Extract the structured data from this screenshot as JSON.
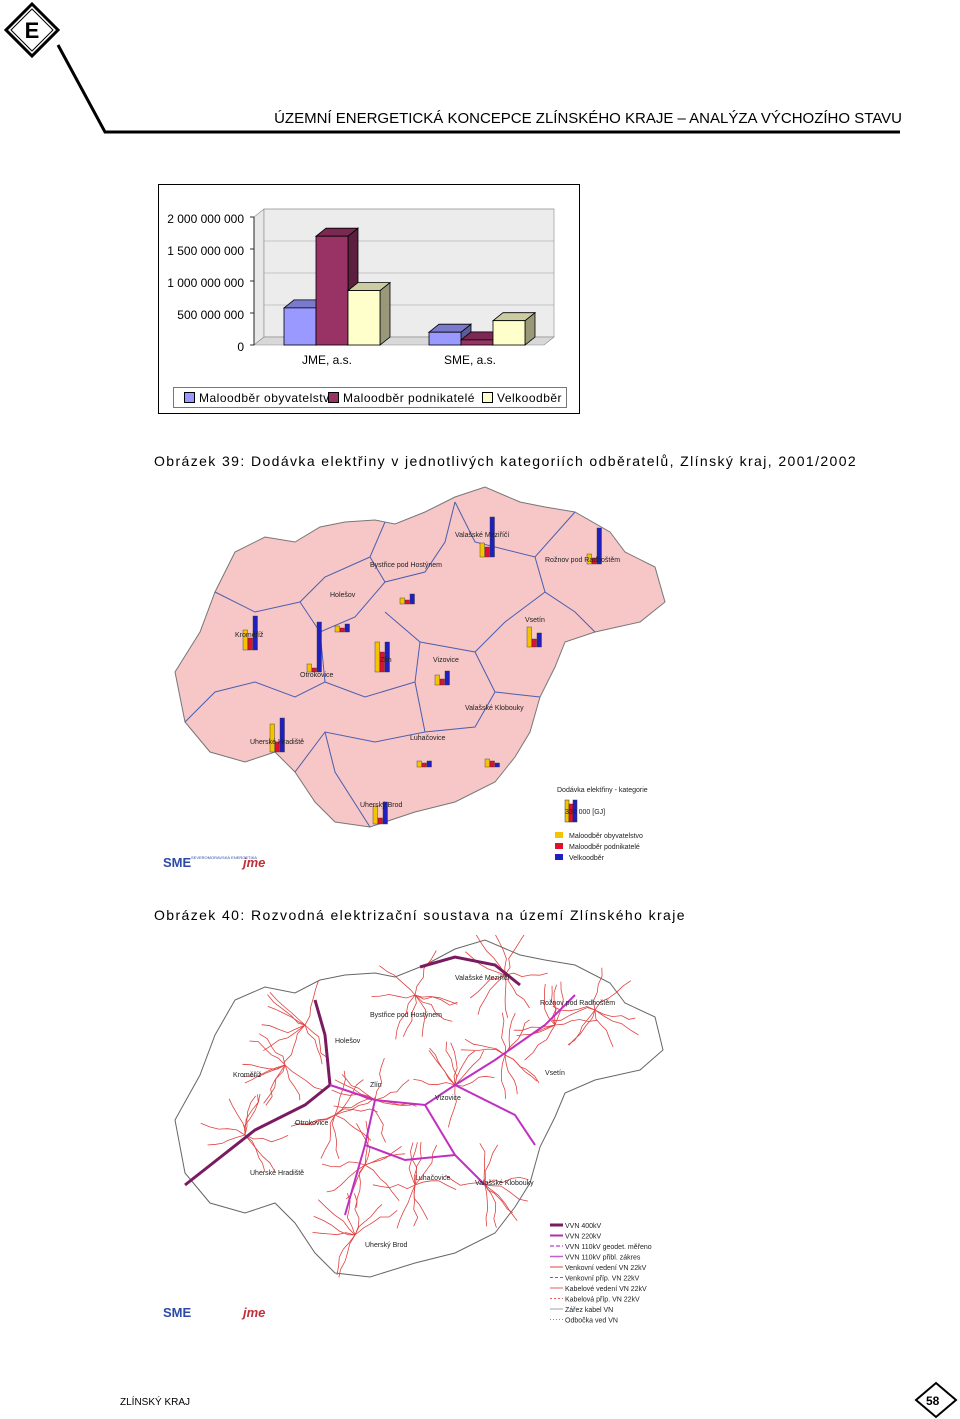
{
  "header": {
    "logo_letter": "E",
    "title": "ÚZEMNÍ ENERGETICKÁ KONCEPCE ZLÍNSKÉHO KRAJE – ANALÝZA VÝCHOZÍHO STAVU"
  },
  "chart_data": {
    "type": "bar",
    "categories": [
      "JME, a.s.",
      "SME, a.s."
    ],
    "series": [
      {
        "name": "Maloodběr obyvatelstvo",
        "values": [
          580000000,
          200000000
        ],
        "color": "#9999ff"
      },
      {
        "name": "Maloodběr podnikatelé",
        "values": [
          1700000000,
          80000000
        ],
        "color": "#993366"
      },
      {
        "name": "Velkoodběr",
        "values": [
          850000000,
          380000000
        ],
        "color": "#ffffcc"
      }
    ],
    "y_ticks": [
      "2 000 000 000",
      "1 500 000 000",
      "1 000 000 000",
      "500 000 000",
      "0"
    ],
    "ylim": [
      0,
      2000000000
    ],
    "legend_position": "bottom"
  },
  "captions": {
    "fig39": "Obrázek 39: Dodávka elektřiny v jednotlivých kategoriích odběratelů, Zlínský kraj, 2001/2002",
    "fig40": "Obrázek 40: Rozvodná elektrizační soustava na území Zlínského kraje"
  },
  "map1": {
    "towns": [
      "Valašské Meziříčí",
      "Rožnov pod Radhoštěm",
      "Bystřice pod Hostýnem",
      "Holešov",
      "Kroměříž",
      "Vsetín",
      "Zlín",
      "Vizovice",
      "Otrokovice",
      "Valašské Klobouky",
      "Uherské Hradiště",
      "Luhačovice",
      "Uherský Brod"
    ],
    "legend_title": "Dodávka elektřiny - kategorie",
    "legend_scale": "330 000 [GJ]",
    "legend_items": [
      "Maloodběr obyvatelstvo",
      "Maloodběr podnikatelé",
      "Velkoodběr"
    ],
    "logo_sme": "SME",
    "logo_sme_sub": "SEVEROMORAVSKÁ ENERGETIKA",
    "logo_jme": "jme"
  },
  "map2": {
    "legend_items": [
      "VVN 400kV",
      "VVN 220kV",
      "VVN 110kV geodet. měřeno",
      "VVN 110kV přibl. zákres",
      "Venkovní vedení VN 22kV",
      "Venkovní příp. VN 22kV",
      "Kabelové vedení VN 22kV",
      "Kabelová příp. VN 22kV",
      "Zářez kabel VN",
      "Odbočka ved VN"
    ]
  },
  "footer": {
    "region": "ZLÍNSKÝ KRAJ",
    "page": "58"
  }
}
